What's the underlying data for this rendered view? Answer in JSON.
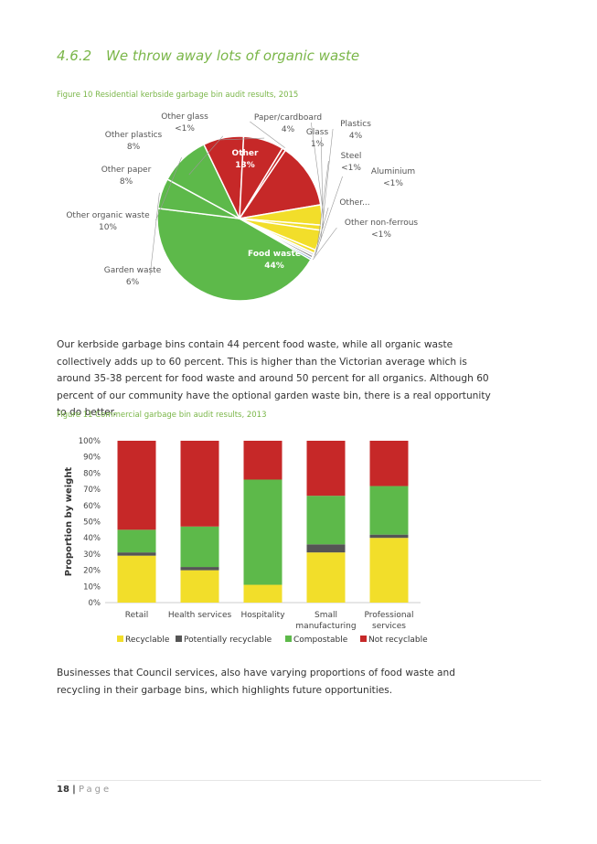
{
  "section": {
    "number": "4.6.2",
    "title": "We throw away lots of organic waste"
  },
  "figure10": {
    "caption": "Figure 10 Residential kerbside garbage bin audit results, 2015",
    "chart_data": {
      "type": "pie",
      "slices": [
        {
          "label": "Food waste",
          "value": "44%",
          "pct": 44,
          "color": "#5db94a"
        },
        {
          "label": "Garden waste",
          "value": "6%",
          "pct": 6,
          "color": "#5db94a"
        },
        {
          "label": "Other organic waste",
          "value": "10%",
          "pct": 10,
          "color": "#5db94a"
        },
        {
          "label": "Other paper",
          "value": "8%",
          "pct": 8,
          "color": "#c62828"
        },
        {
          "label": "Other plastics",
          "value": "8%",
          "pct": 8,
          "color": "#c62828"
        },
        {
          "label": "Other glass",
          "value": "<1%",
          "pct": 0.7,
          "color": "#c62828"
        },
        {
          "label": "Other",
          "value": "13%",
          "pct": 13,
          "color": "#c62828"
        },
        {
          "label": "Paper/cardboard",
          "value": "4%",
          "pct": 4,
          "color": "#f2de2a"
        },
        {
          "label": "Glass",
          "value": "1%",
          "pct": 1,
          "color": "#f2de2a"
        },
        {
          "label": "Plastics",
          "value": "4%",
          "pct": 4,
          "color": "#f2de2a"
        },
        {
          "label": "Steel",
          "value": "<1%",
          "pct": 0.7,
          "color": "#f2de2a"
        },
        {
          "label": "Aluminium",
          "value": "<1%",
          "pct": 0.5,
          "color": "#d8d8d8"
        },
        {
          "label": "Other...",
          "value": "",
          "pct": 0.5,
          "color": "#888888"
        },
        {
          "label": "Other non-ferrous",
          "value": "<1%",
          "pct": 0.4,
          "color": "#5b8ec7"
        }
      ]
    }
  },
  "paragraph1": "Our kerbside garbage bins contain 44 percent food waste, while all organic waste collectively adds up to 60 percent.  This is higher than the Victorian average which is around 35-38 percent for food waste and around 50 percent for all organics. Although 60 percent of our community have the optional garden waste bin, there is a real opportunity to do better.",
  "figure11": {
    "caption": "Figure 11 Commercial garbage bin audit results, 2013",
    "chart_data": {
      "type": "bar",
      "stacked": true,
      "ylabel": "Proportion by weight",
      "ylim": [
        0,
        100
      ],
      "yticks": [
        "0%",
        "10%",
        "20%",
        "30%",
        "40%",
        "50%",
        "60%",
        "70%",
        "80%",
        "90%",
        "100%"
      ],
      "categories": [
        [
          "Retail"
        ],
        [
          "Health services"
        ],
        [
          "Hospitality"
        ],
        [
          "Small",
          "manufacturing"
        ],
        [
          "Professional",
          "services"
        ]
      ],
      "series": [
        {
          "name": "Recyclable",
          "color": "#f2de2a",
          "values": [
            29,
            20,
            11,
            31,
            40
          ]
        },
        {
          "name": "Potentially recyclable",
          "color": "#555555",
          "values": [
            2,
            2,
            0,
            5,
            2
          ]
        },
        {
          "name": "Compostable",
          "color": "#5db94a",
          "values": [
            14,
            25,
            65,
            30,
            30
          ]
        },
        {
          "name": "Not recyclable",
          "color": "#c62828",
          "values": [
            55,
            53,
            24,
            34,
            28
          ]
        }
      ],
      "legend": "bottom"
    }
  },
  "paragraph2": "Businesses that Council services, also have varying proportions of food waste and recycling in their garbage bins, which highlights future opportunities.",
  "footer": {
    "page": "18",
    "separator": "|",
    "word": "Page"
  }
}
